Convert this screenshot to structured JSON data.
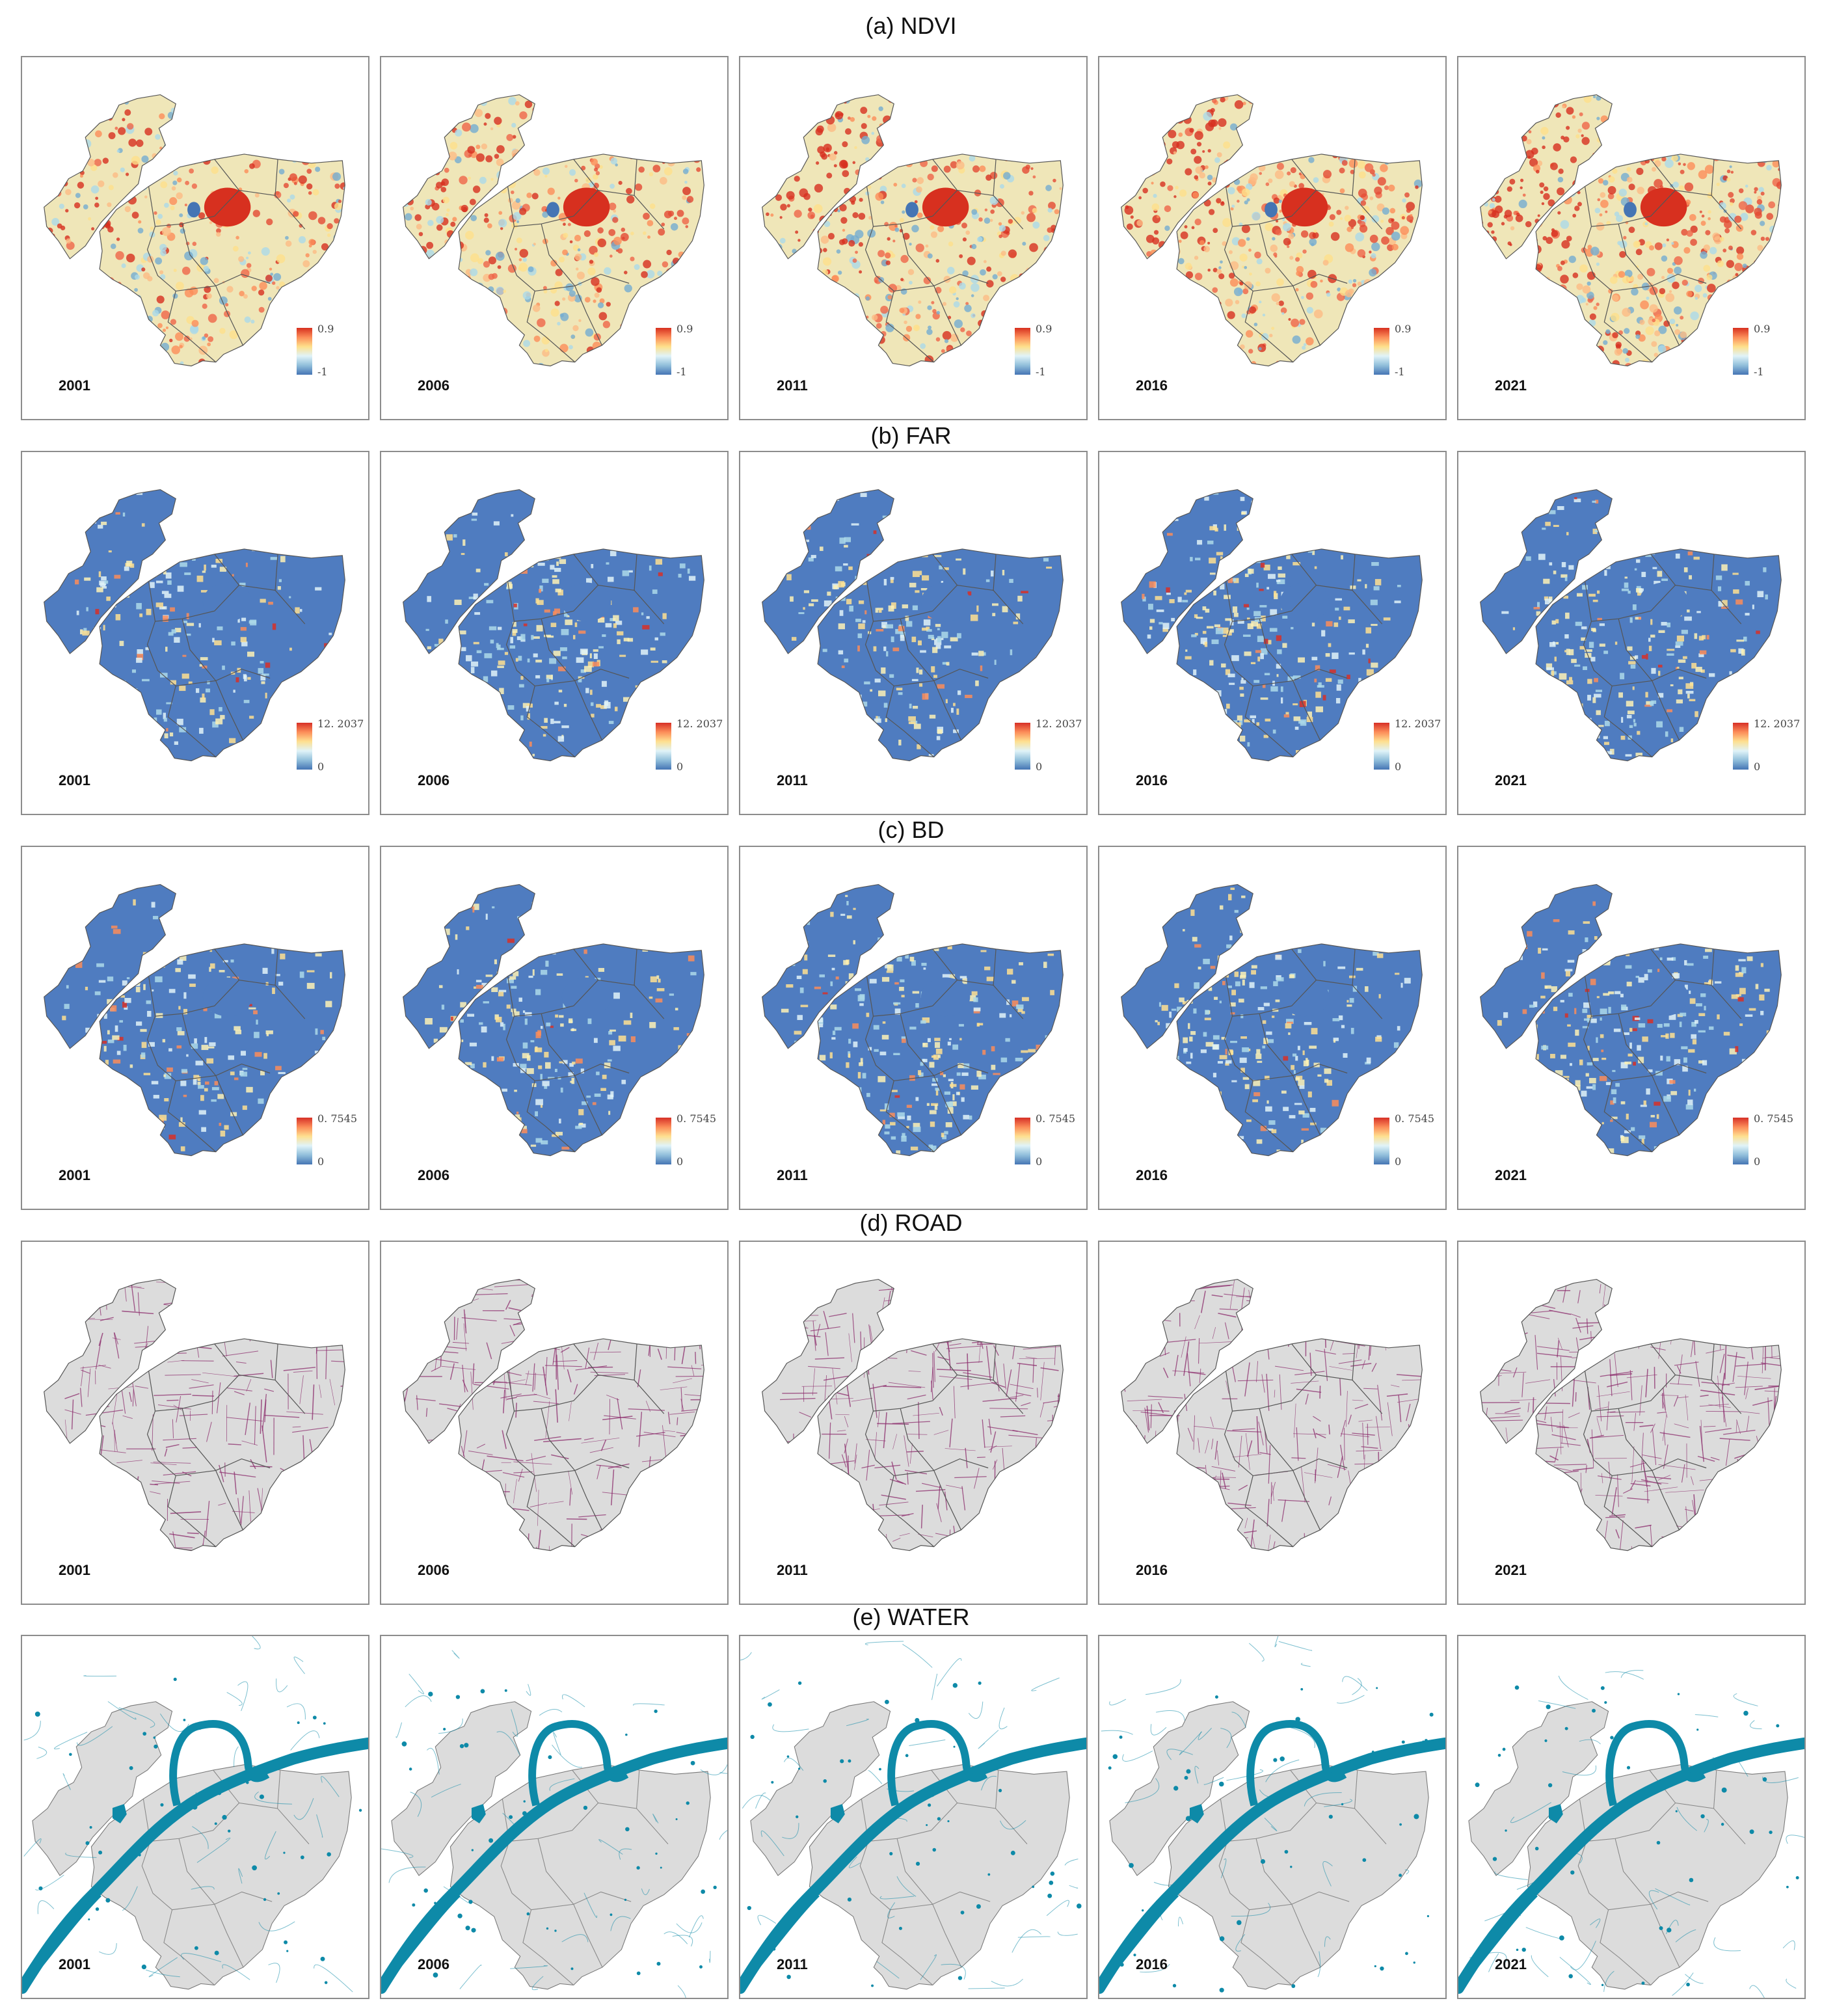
{
  "sections": [
    {
      "label": "(a)  NDVI",
      "legend_max": "0.9",
      "legend_min": "-1"
    },
    {
      "label": "(b)  FAR",
      "legend_max": "12. 2037",
      "legend_min": "0"
    },
    {
      "label": "(c)  BD",
      "legend_max": "0. 7545",
      "legend_min": "0"
    },
    {
      "label": "(d)  ROAD"
    },
    {
      "label": "(e)  WATER"
    }
  ],
  "years": [
    "2001",
    "2006",
    "2011",
    "2016",
    "2021"
  ],
  "colors": {
    "ndvi_high": "#d7301f",
    "ndvi_mid": "#fee08b",
    "ndvi_low": "#4575b4",
    "far_base": "#4f7cc0",
    "road": "#8b2a6b",
    "region_fill": "#dcdcdc",
    "water": "#0e8aa8"
  }
}
